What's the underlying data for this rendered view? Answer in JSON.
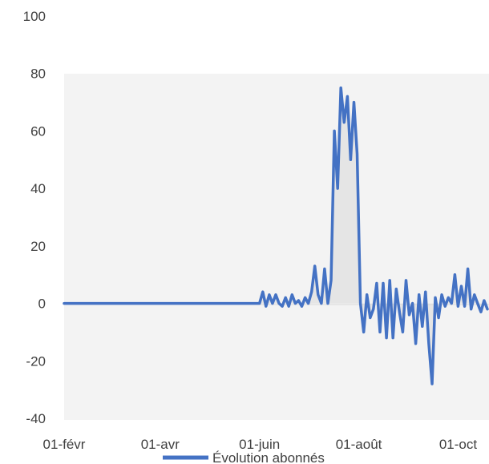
{
  "chart_data": {
    "type": "line",
    "title": "",
    "xlabel": "",
    "ylabel": "",
    "ylim": [
      -40,
      100
    ],
    "y_ticks": [
      "100",
      "80",
      "60",
      "40",
      "20",
      "0",
      "-20",
      "-40"
    ],
    "x_tick_labels": [
      "01-févr",
      "01-avr",
      "01-juin",
      "01-août",
      "01-oct"
    ],
    "grid": false,
    "legend_position": "bottom",
    "series": [
      {
        "name": "Évolution abonnés",
        "color": "#4472C4",
        "x": [
          "01-févr",
          "05-févr",
          "15-févr",
          "01-mars",
          "15-mars",
          "01-avr",
          "15-avr",
          "01-mai",
          "15-mai",
          "01-juin",
          "03-juin",
          "05-juin",
          "07-juin",
          "09-juin",
          "11-juin",
          "13-juin",
          "15-juin",
          "17-juin",
          "19-juin",
          "21-juin",
          "23-juin",
          "25-juin",
          "27-juin",
          "29-juin",
          "01-juil",
          "03-juil",
          "05-juil",
          "07-juil",
          "09-juil",
          "11-juil",
          "13-juil",
          "15-juil",
          "17-juil",
          "19-juil",
          "21-juil",
          "23-juil",
          "25-juil",
          "27-juil",
          "29-juil",
          "31-juil",
          "02-août",
          "04-août",
          "06-août",
          "08-août",
          "10-août",
          "12-août",
          "14-août",
          "16-août",
          "18-août",
          "20-août",
          "22-août",
          "24-août",
          "26-août",
          "28-août",
          "30-août",
          "01-sept",
          "03-sept",
          "05-sept",
          "07-sept",
          "09-sept",
          "11-sept",
          "13-sept",
          "15-sept",
          "17-sept",
          "19-sept",
          "21-sept",
          "23-sept",
          "25-sept",
          "27-sept",
          "29-sept",
          "01-oct",
          "03-oct",
          "05-oct",
          "07-oct",
          "09-oct",
          "11-oct",
          "13-oct",
          "15-oct",
          "17-oct",
          "19-oct"
        ],
        "y": [
          0,
          0,
          0,
          0,
          0,
          0,
          0,
          0,
          0,
          0,
          4,
          -1,
          3,
          0,
          3,
          0,
          -1,
          2,
          -1,
          3,
          0,
          1,
          -1,
          2,
          0,
          4,
          13,
          3,
          0,
          12,
          0,
          8,
          60,
          40,
          75,
          63,
          72,
          50,
          70,
          52,
          0,
          -10,
          3,
          -5,
          -2,
          7,
          -10,
          7,
          -12,
          8,
          -12,
          5,
          -3,
          -10,
          8,
          -4,
          0,
          -14,
          3,
          -8,
          4,
          -14,
          -28,
          2,
          -5,
          3,
          -1,
          2,
          0,
          10,
          -1,
          6,
          -1,
          12,
          -2,
          3,
          0,
          -3,
          1,
          -2
        ]
      }
    ]
  }
}
